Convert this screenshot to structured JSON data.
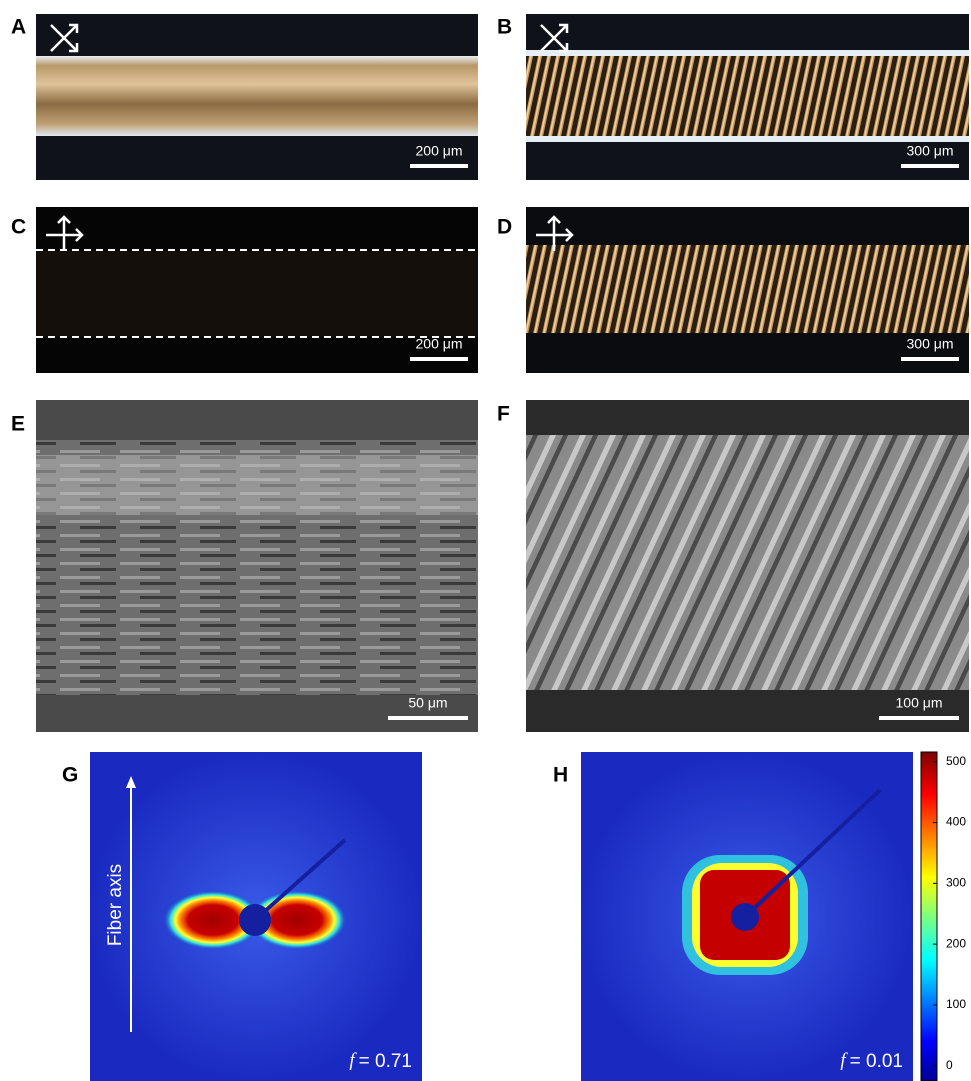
{
  "panels": [
    {
      "label": "A",
      "scale_bar": "200 μm"
    },
    {
      "label": "B",
      "scale_bar": "300 μm"
    },
    {
      "label": "C",
      "scale_bar": "200 μm"
    },
    {
      "label": "D",
      "scale_bar": "300 μm"
    },
    {
      "label": "E",
      "scale_bar": "50 μm"
    },
    {
      "label": "F",
      "scale_bar": "100 μm"
    }
  ],
  "diffraction": [
    {
      "label": "G",
      "symbol": "f",
      "text": "= 0.71"
    },
    {
      "label": "H",
      "symbol": "f",
      "text": "= 0.01"
    }
  ],
  "fiber_axis_label": "Fiber axis",
  "colorbar": {
    "lim": [
      -25,
      516
    ],
    "ticks": [
      0,
      100,
      200,
      300,
      400,
      500
    ]
  }
}
